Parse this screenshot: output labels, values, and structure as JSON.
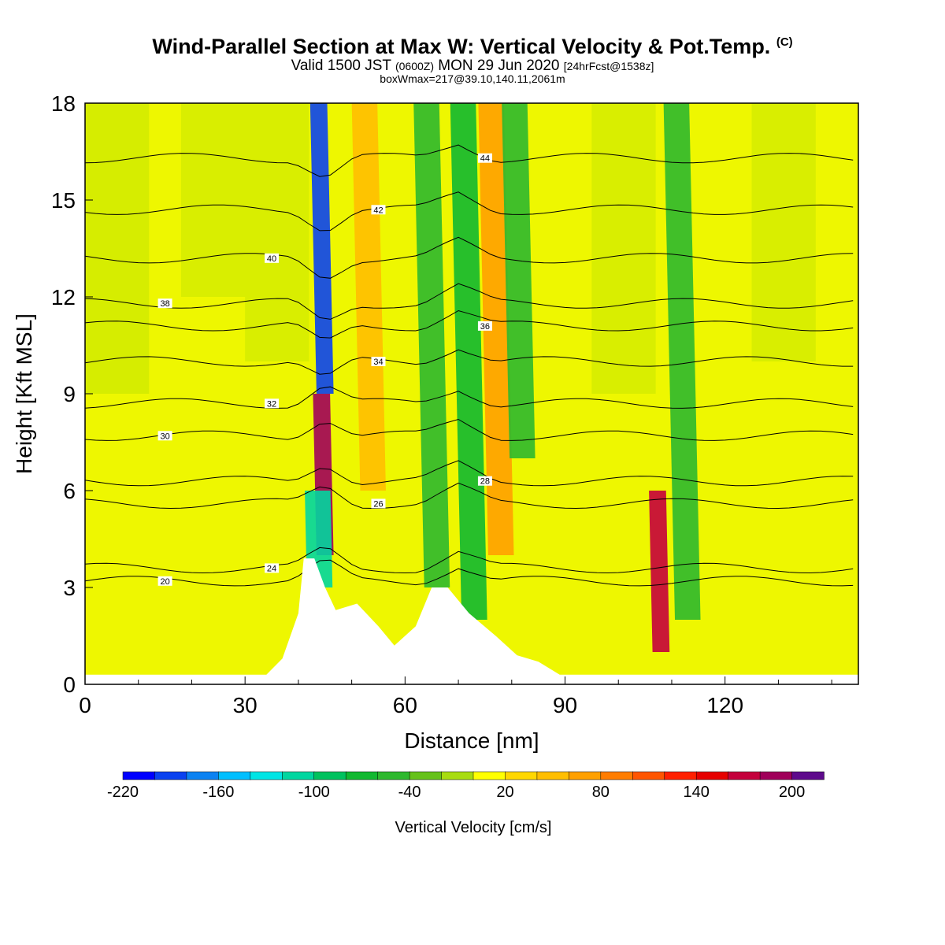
{
  "header": {
    "title": "Wind-Parallel Section at Max W: Vertical Velocity & Pot.Temp.",
    "title_mark": "(C)",
    "subtitle_main": "Valid 1500 JST",
    "subtitle_z": "(0600Z)",
    "subtitle_date": "MON 29 Jun 2020",
    "subtitle_fcst": "[24hrFcst@1538z]",
    "subtitle2": "boxWmax=217@39.10,140.11,2061m"
  },
  "chart_data": {
    "type": "heatmap",
    "xlabel": "Distance [nm]",
    "ylabel": "Height [Kft MSL]",
    "xlim": [
      0,
      145
    ],
    "ylim": [
      0,
      18
    ],
    "xticks": [
      0,
      30,
      60,
      90,
      120
    ],
    "yticks": [
      0,
      3,
      6,
      9,
      12,
      15,
      18
    ],
    "colorbar": {
      "label": "Vertical Velocity [cm/s]",
      "tick_labels": [
        "-220",
        "-160",
        "-100",
        "-40",
        "20",
        "80",
        "140",
        "200"
      ],
      "colors": [
        "#0000ff",
        "#0a42f0",
        "#0b82f2",
        "#00bfff",
        "#00e5e5",
        "#00d6a0",
        "#00c25e",
        "#11b830",
        "#2eb82e",
        "#66c21a",
        "#a8dc10",
        "#ffff00",
        "#ffd700",
        "#ffbe00",
        "#ffa000",
        "#ff7d00",
        "#ff5500",
        "#ff2000",
        "#e60000",
        "#c4003c",
        "#a0005a",
        "#5e0a8c"
      ]
    },
    "theta_contours": [
      {
        "label": "20",
        "height_kft": 3.2
      },
      {
        "label": "24",
        "height_kft": 3.6
      },
      {
        "label": "26",
        "height_kft": 5.6
      },
      {
        "label": "28",
        "height_kft": 6.3
      },
      {
        "label": "30",
        "height_kft": 7.7
      },
      {
        "label": "32",
        "height_kft": 8.7
      },
      {
        "label": "34",
        "height_kft": 10.0
      },
      {
        "label": "36",
        "height_kft": 11.1
      },
      {
        "label": "38",
        "height_kft": 11.8
      },
      {
        "label": "40",
        "height_kft": 13.2
      },
      {
        "label": "42",
        "height_kft": 14.7
      },
      {
        "label": "44",
        "height_kft": 16.3
      }
    ],
    "vertical_velocity_bands": [
      {
        "x_nm": 45,
        "w": 200,
        "base_kft": 4,
        "top_kft": 9
      },
      {
        "x_nm": 45,
        "w": -200,
        "base_kft": 9,
        "top_kft": 18
      },
      {
        "x_nm": 44,
        "w": -120,
        "base_kft": 3,
        "top_kft": 6
      },
      {
        "x_nm": 54,
        "w": 60,
        "base_kft": 6,
        "top_kft": 18
      },
      {
        "x_nm": 66,
        "w": -60,
        "base_kft": 3,
        "top_kft": 18
      },
      {
        "x_nm": 73,
        "w": -80,
        "base_kft": 2,
        "top_kft": 18
      },
      {
        "x_nm": 78,
        "w": 80,
        "base_kft": 4,
        "top_kft": 18
      },
      {
        "x_nm": 82,
        "w": -60,
        "base_kft": 7,
        "top_kft": 18
      },
      {
        "x_nm": 108,
        "w": 180,
        "base_kft": 1,
        "top_kft": 6
      },
      {
        "x_nm": 113,
        "w": -60,
        "base_kft": 2,
        "top_kft": 18
      }
    ],
    "terrain": [
      [
        0,
        0.3
      ],
      [
        34,
        0.3
      ],
      [
        37,
        0.8
      ],
      [
        40,
        2.2
      ],
      [
        41,
        3.9
      ],
      [
        43,
        3.9
      ],
      [
        45,
        3.0
      ],
      [
        47,
        2.3
      ],
      [
        51,
        2.5
      ],
      [
        55,
        1.8
      ],
      [
        58,
        1.2
      ],
      [
        62,
        1.8
      ],
      [
        65,
        3.0
      ],
      [
        68,
        3.0
      ],
      [
        72,
        2.2
      ],
      [
        77,
        1.5
      ],
      [
        81,
        0.9
      ],
      [
        85,
        0.7
      ],
      [
        88,
        0.4
      ],
      [
        89,
        0.3
      ],
      [
        145,
        0.3
      ]
    ]
  }
}
